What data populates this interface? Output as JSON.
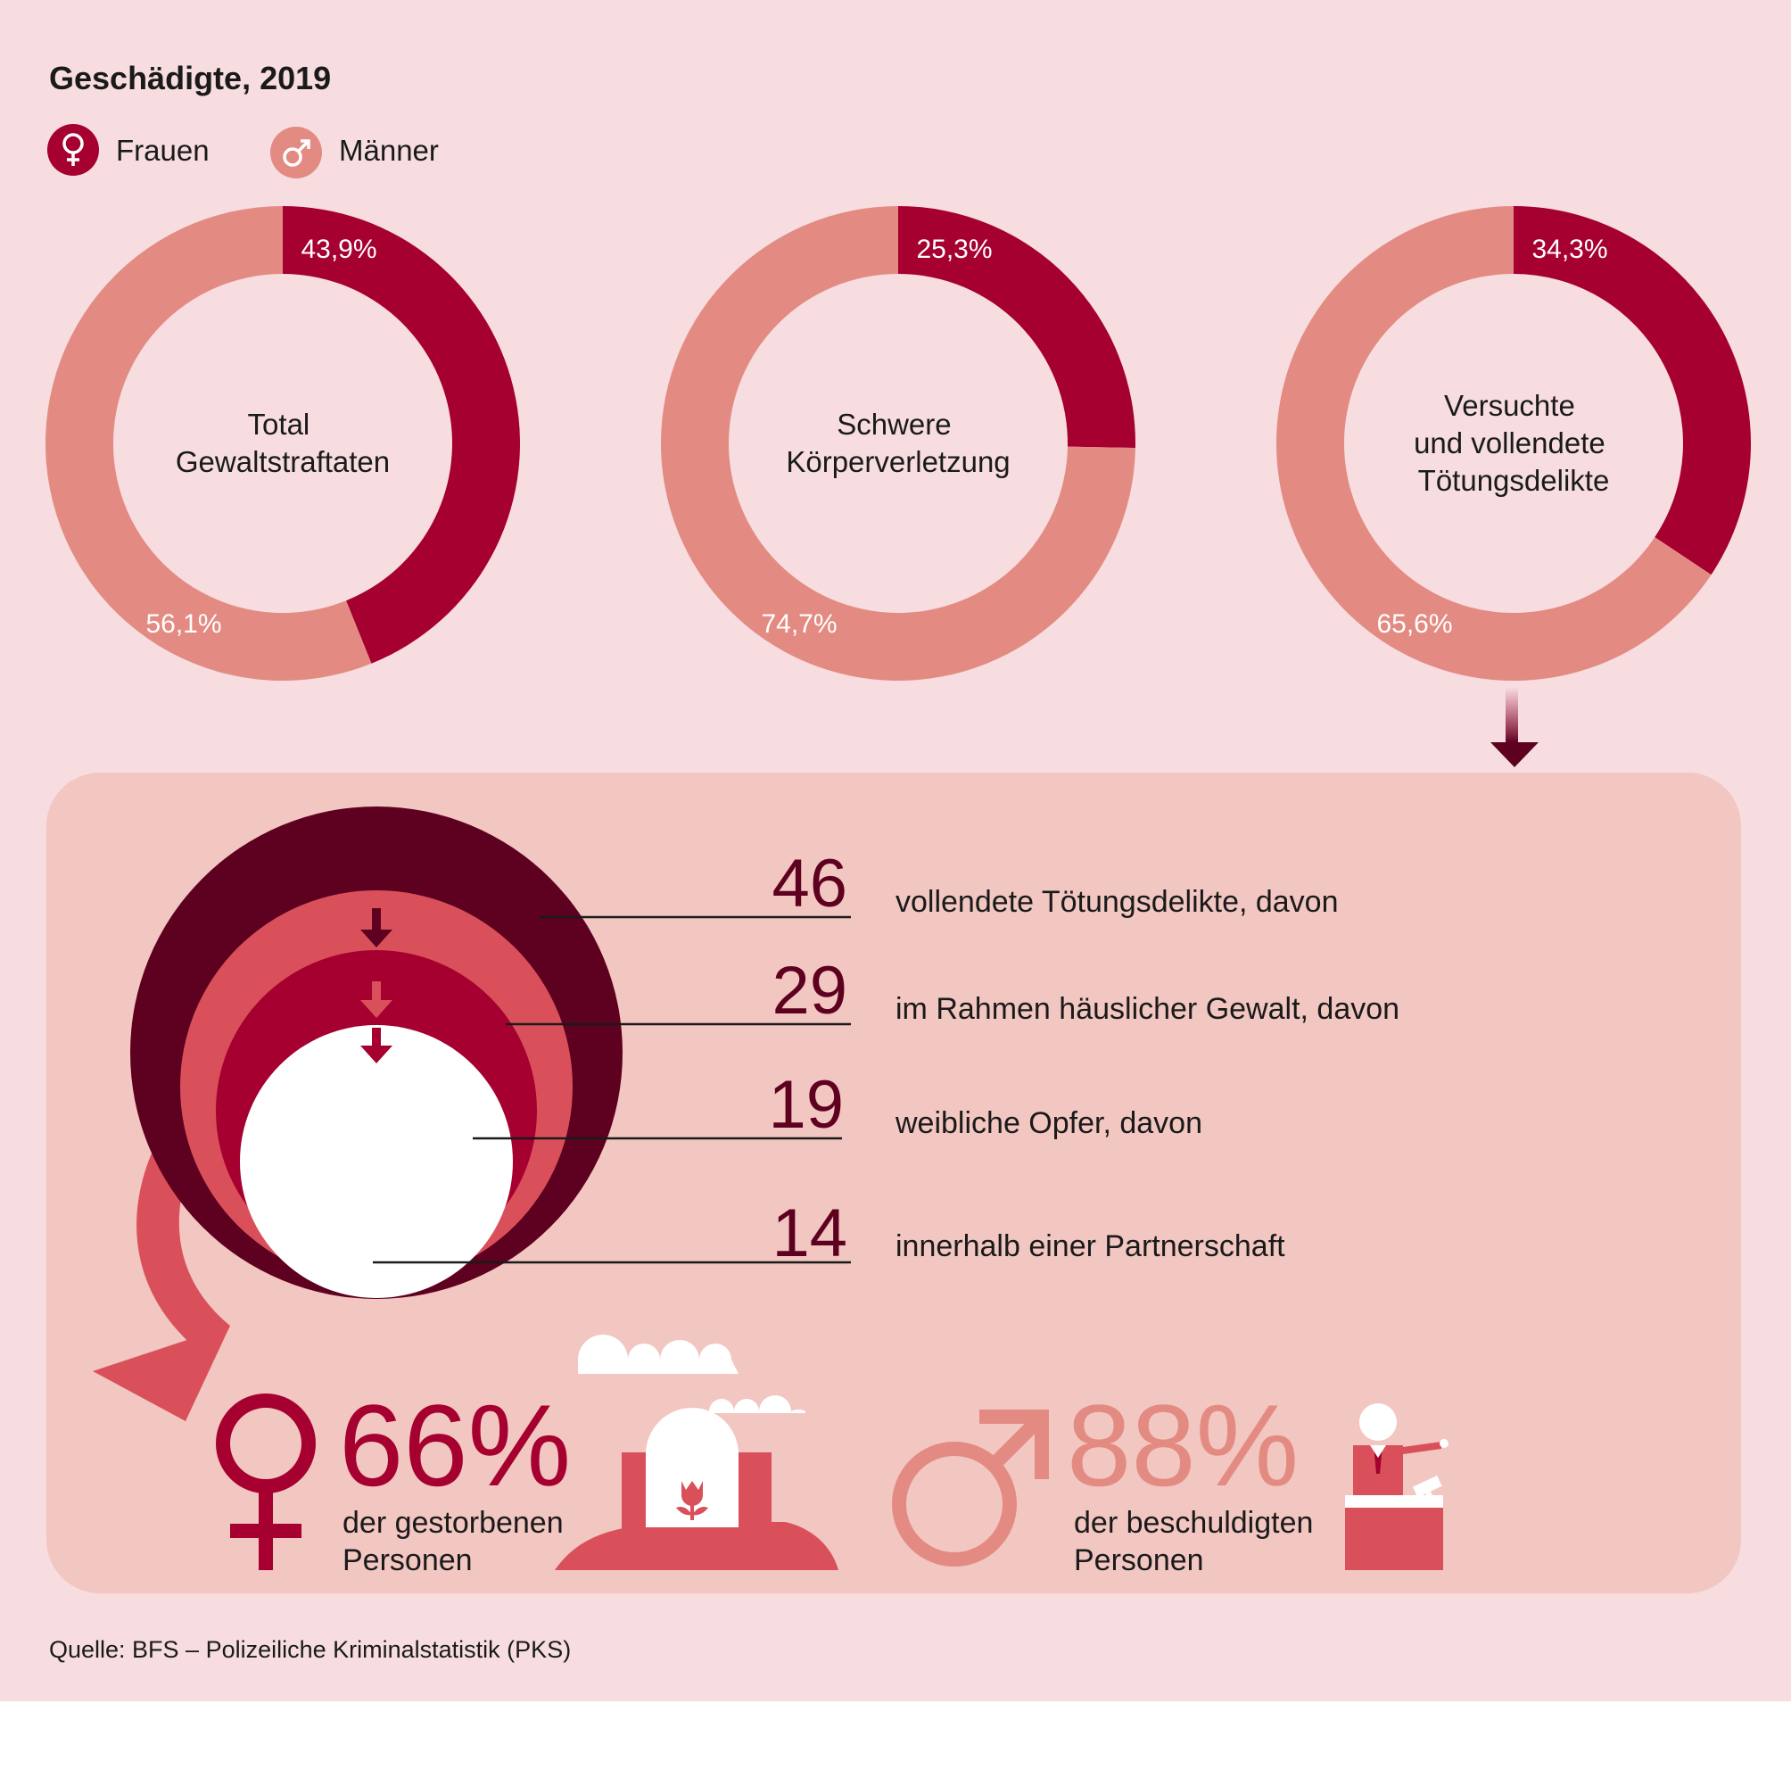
{
  "header": {
    "title": "Geschädigte, 2019"
  },
  "legend": {
    "items": [
      {
        "label": "Frauen",
        "color": "#a50030",
        "icon": "female-symbol-icon"
      },
      {
        "label": "Männer",
        "color": "#e38b82",
        "icon": "male-symbol-icon"
      }
    ]
  },
  "colors": {
    "background": "#f7dde0",
    "panel": "#f2c6c1",
    "women": "#a50030",
    "men": "#e38b82",
    "dark": "#5e001f",
    "mid": "#d9505a"
  },
  "chart_data": [
    {
      "type": "pie",
      "center_label": [
        "Total",
        "Gewaltstraftaten"
      ],
      "series": [
        {
          "name": "Frauen",
          "value": 43.9,
          "label": "43,9%"
        },
        {
          "name": "Männer",
          "value": 56.1,
          "label": "56,1%"
        }
      ]
    },
    {
      "type": "pie",
      "center_label": [
        "Schwere",
        "Körperverletzung"
      ],
      "series": [
        {
          "name": "Frauen",
          "value": 25.3,
          "label": "25,3%"
        },
        {
          "name": "Männer",
          "value": 74.7,
          "label": "74,7%"
        }
      ]
    },
    {
      "type": "pie",
      "center_label": [
        "Versuchte",
        "und vollendete",
        "Tötungsdelikte"
      ],
      "series": [
        {
          "name": "Frauen",
          "value": 34.3,
          "label": "34,3%"
        },
        {
          "name": "Männer",
          "value": 65.6,
          "label": "65,6%"
        }
      ]
    }
  ],
  "breakdown": {
    "items": [
      {
        "number": "46",
        "text": "vollendete Tötungsdelikte, davon",
        "color": "#5e001f"
      },
      {
        "number": "29",
        "text": "im Rahmen häuslicher Gewalt, davon",
        "color": "#d9505a"
      },
      {
        "number": "19",
        "text": "weibliche Opfer, davon",
        "color": "#a50030"
      },
      {
        "number": "14",
        "text": "innerhalb einer Partnerschaft",
        "color": "#ffffff"
      }
    ]
  },
  "stats": {
    "female": {
      "value": "66%",
      "lines": [
        "der gestorbenen",
        "Personen"
      ],
      "icon": "grave-icon"
    },
    "male": {
      "value": "88%",
      "lines": [
        "der beschuldigten",
        "Personen"
      ],
      "icon": "judge-icon"
    }
  },
  "footer": {
    "source": "Quelle: BFS – Polizeiliche Kriminalstatistik (PKS)"
  }
}
